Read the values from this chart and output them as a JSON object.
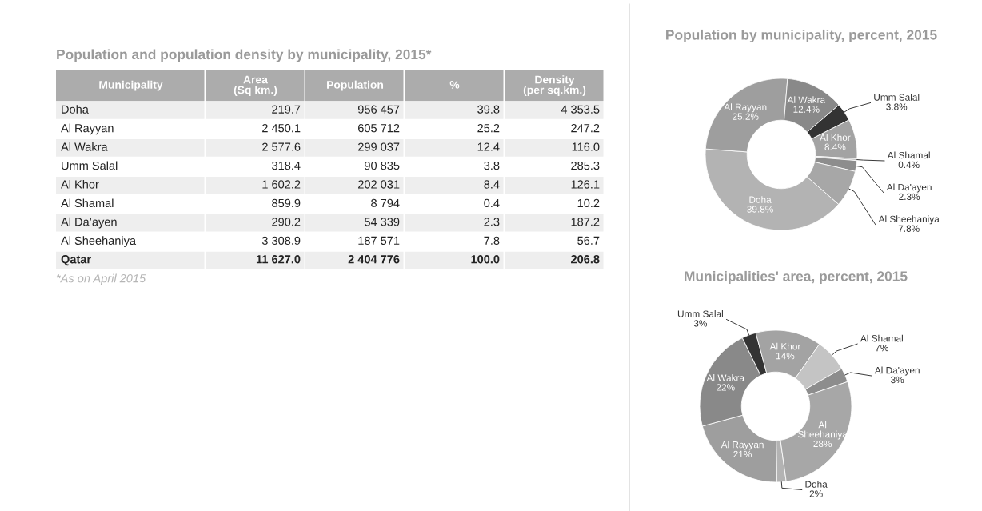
{
  "chart_data": [
    {
      "type": "other",
      "title": "Population and population density by municipality, 2015*",
      "categories": [
        "Municipality",
        "Area\n(Sq km.)",
        "Population",
        "%",
        "Density\n(per sq.km.)"
      ],
      "y_categories": [
        "Doha",
        "Al Rayyan",
        "Al Wakra",
        "Umm Salal",
        "Al Khor",
        "Al Shamal",
        "Al Da’ayen",
        "Al Sheehaniya",
        "Qatar"
      ],
      "cell_labels": [
        [
          "219.7",
          "956 457",
          "39.8",
          "4 353.5"
        ],
        [
          "2 450.1",
          "605 712",
          "25.2",
          "247.2"
        ],
        [
          "2 577.6",
          "299 037",
          "12.4",
          "116.0"
        ],
        [
          "318.4",
          "90 835",
          "3.8",
          "285.3"
        ],
        [
          "1 602.2",
          "202 031",
          "8.4",
          "126.1"
        ],
        [
          "859.9",
          "8 794",
          "0.4",
          "10.2"
        ],
        [
          "290.2",
          "54 339",
          "2.3",
          "187.2"
        ],
        [
          "3 308.9",
          "187 571",
          "7.8",
          "56.7"
        ],
        [
          "11 627.0",
          "2 404 776",
          "100.0",
          "206.8"
        ]
      ],
      "annotations": [
        "*As on April 2015"
      ]
    },
    {
      "type": "donut",
      "title": "Population by municipality, percent, 2015",
      "categories": [
        "Doha",
        "Al Rayyan",
        "Al Wakra",
        "Umm Salal",
        "Al Khor",
        "Al Shamal",
        "Al Da'ayen",
        "Al Sheehaniya"
      ],
      "values": [
        39.8,
        25.2,
        12.4,
        3.8,
        8.4,
        0.4,
        2.3,
        7.8
      ],
      "value_labels": [
        "39.8%",
        "25.2%",
        "12.4%",
        "3.8%",
        "8.4%",
        "0.4%",
        "2.3%",
        "7.8%"
      ],
      "colors": [
        "#b3b3b3",
        "#9e9e9e",
        "#898989",
        "#333333",
        "#a3a3a3",
        "#c4c4c4",
        "#8d8d8d",
        "#a7a7a7"
      ],
      "legend": false
    },
    {
      "type": "donut",
      "title": "Municipalities' area, percent, 2015",
      "categories": [
        "Doha",
        "Al Rayyan",
        "Al Wakra",
        "Umm Salal",
        "Al Khor",
        "Al Shamal",
        "Al Da'ayen",
        "Al Sheehaniya"
      ],
      "values": [
        2,
        21,
        22,
        3,
        14,
        7,
        3,
        28
      ],
      "value_labels": [
        "2%",
        "21%",
        "22%",
        "3%",
        "14%",
        "7%",
        "3%",
        "28%"
      ],
      "colors": [
        "#b3b3b3",
        "#9e9e9e",
        "#898989",
        "#333333",
        "#a3a3a3",
        "#c4c4c4",
        "#8d8d8d",
        "#a7a7a7"
      ],
      "legend": false
    }
  ]
}
